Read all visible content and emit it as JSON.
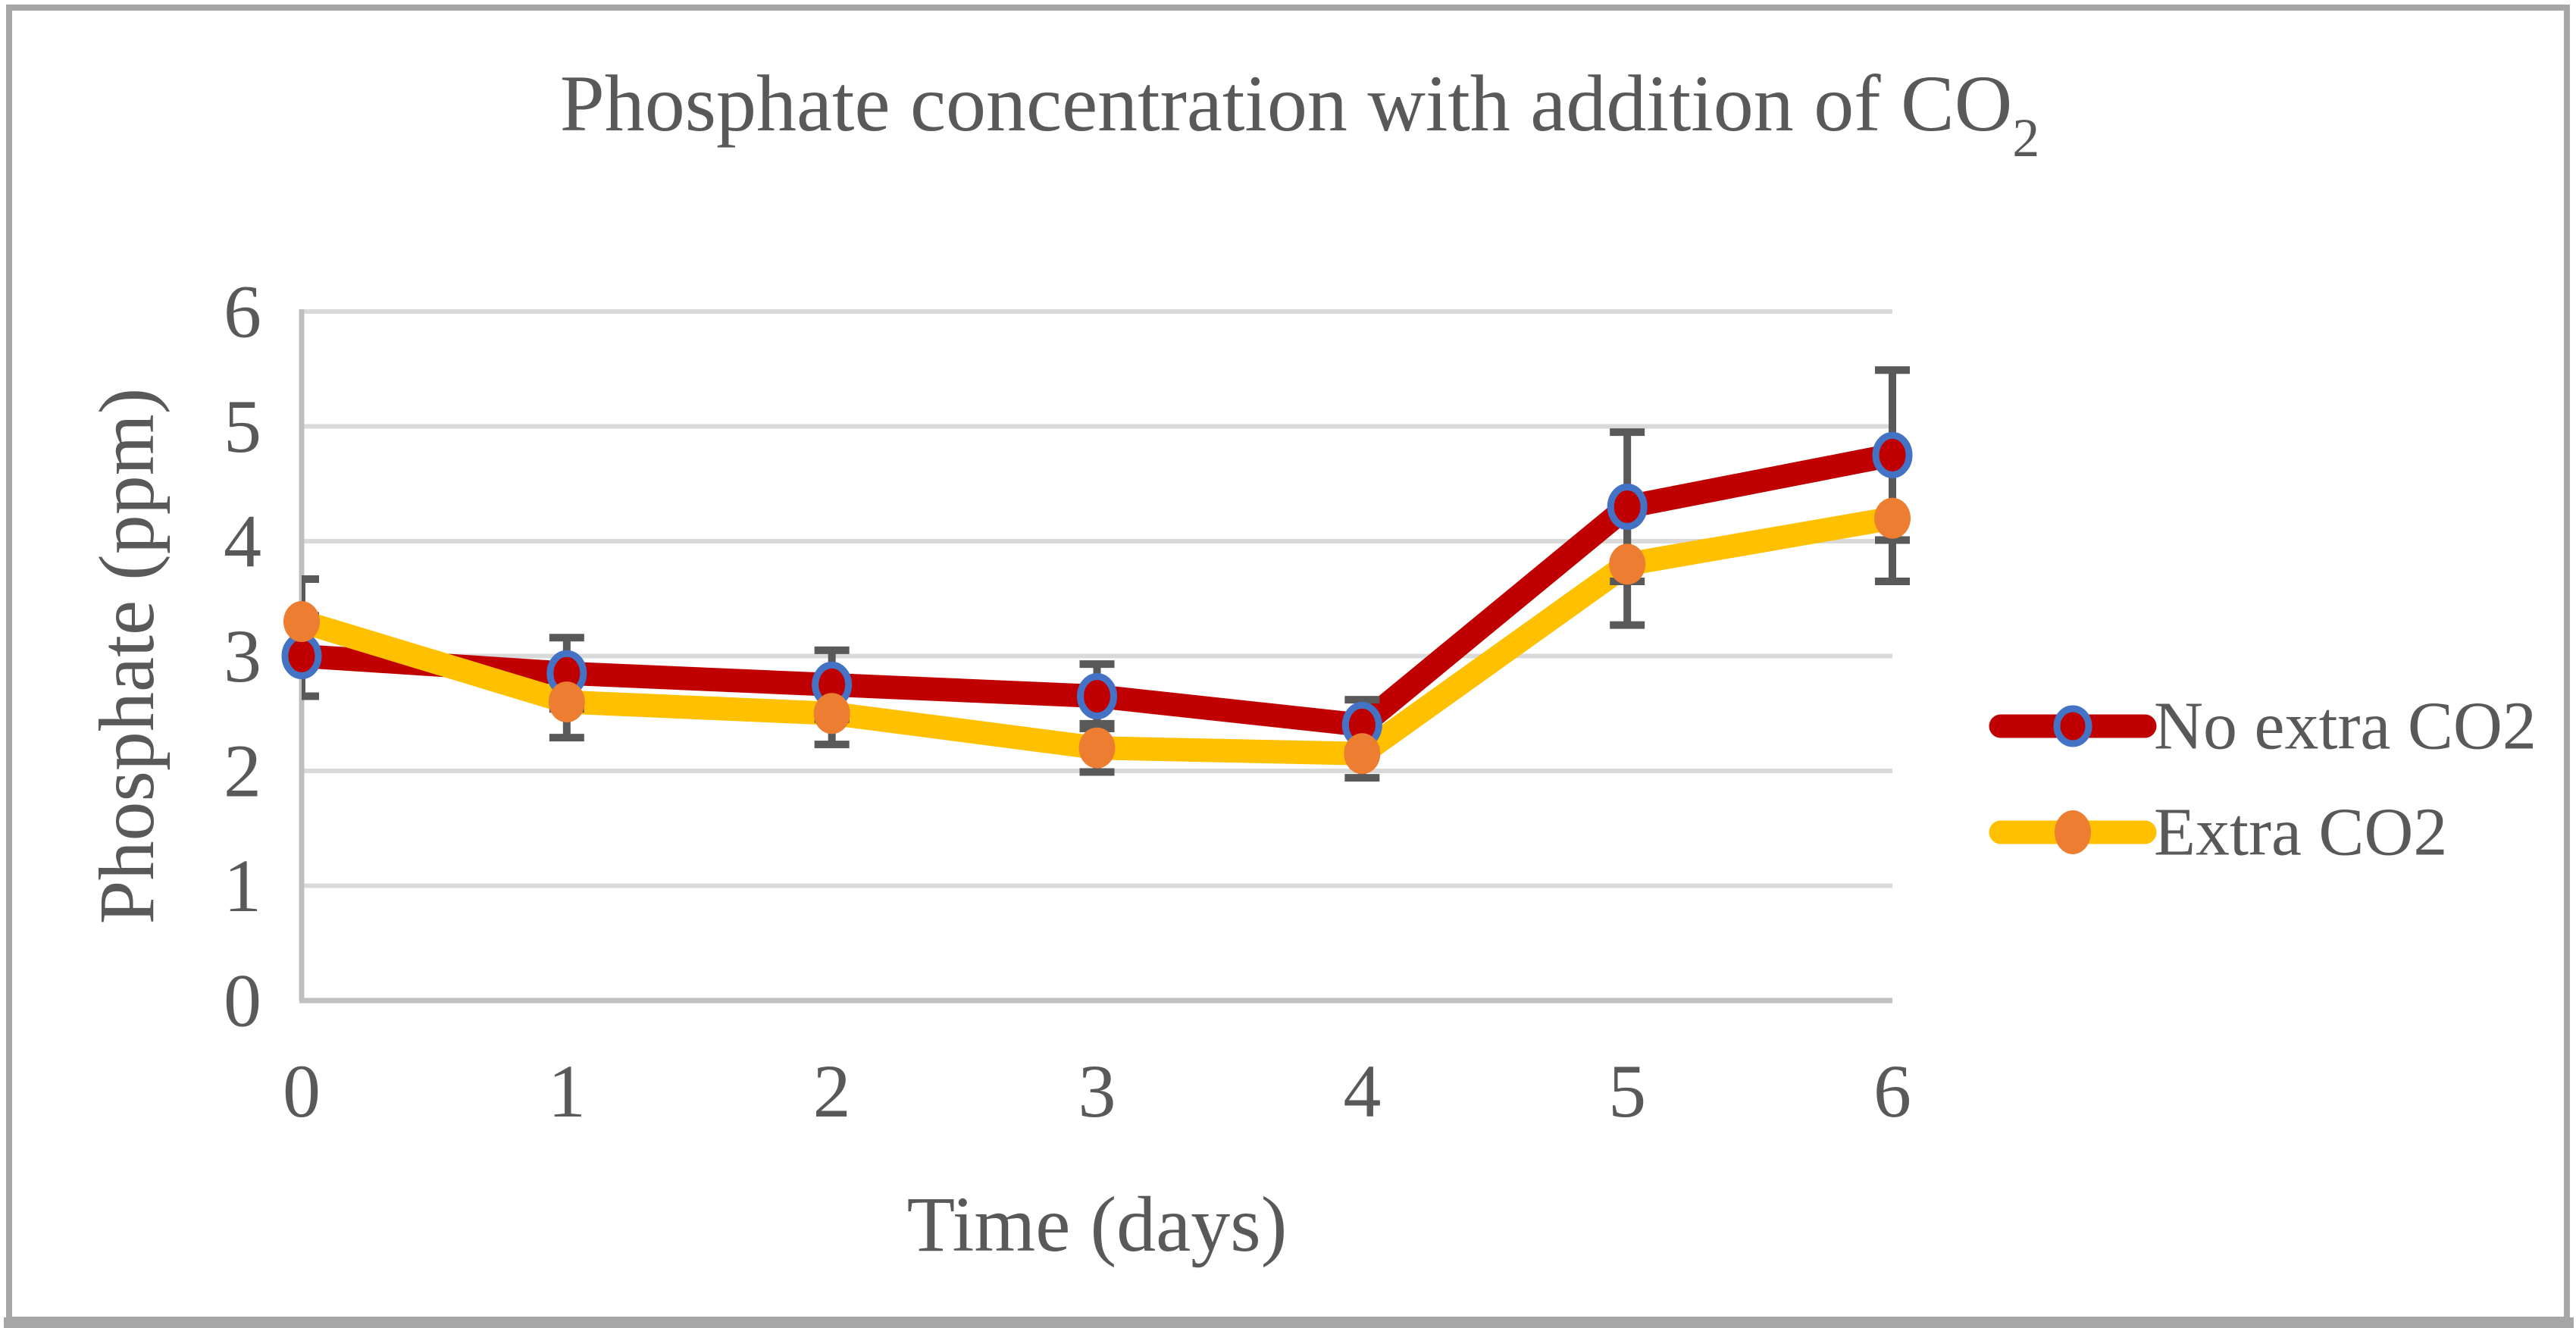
{
  "chart_data": {
    "type": "line",
    "title": "Phosphate concentration with addition of CO₂",
    "title_parts": {
      "main": "Phosphate concentration with addition of CO",
      "subscript": "2"
    },
    "xlabel": "Time (days)",
    "ylabel": "Phosphate (ppm)",
    "x": [
      0,
      1,
      2,
      3,
      4,
      5,
      6
    ],
    "xtick_labels": [
      "0",
      "1",
      "2",
      "3",
      "4",
      "5",
      "6"
    ],
    "ytick_labels": [
      "0",
      "1",
      "2",
      "3",
      "4",
      "5",
      "6"
    ],
    "xlim": [
      0,
      6
    ],
    "ylim": [
      0,
      6
    ],
    "grid": "horizontal-only",
    "legend_position": "right-middle",
    "series": [
      {
        "name": "No extra CO2",
        "values": [
          3.0,
          2.85,
          2.75,
          2.65,
          2.4,
          4.3,
          4.75
        ],
        "error_plus": [
          0.35,
          0.31,
          0.3,
          0.28,
          0.22,
          0.65,
          0.74
        ],
        "error_minus": [
          0.35,
          0.31,
          0.3,
          0.28,
          0.22,
          0.65,
          0.74
        ],
        "line_color": "#C00000",
        "marker": "circle-ring",
        "marker_fill": "#C00000",
        "marker_ring_color": "#4472C4"
      },
      {
        "name": "Extra CO2",
        "values": [
          3.3,
          2.6,
          2.5,
          2.2,
          2.15,
          3.8,
          4.2
        ],
        "error_plus": [
          0.37,
          0.31,
          0.27,
          0.21,
          0.21,
          0.53,
          0.55
        ],
        "error_minus": [
          0.37,
          0.31,
          0.27,
          0.21,
          0.21,
          0.53,
          0.55
        ],
        "line_color": "#FFC000",
        "marker": "circle",
        "marker_fill": "#ED7D31"
      }
    ],
    "colors": {
      "gridline": "#D9D9D9",
      "axis_line": "#BFBFBF",
      "text": "#595959",
      "error_bar": "#595959",
      "figure_border": "#A6A6A6",
      "background": "#FFFFFF"
    }
  }
}
